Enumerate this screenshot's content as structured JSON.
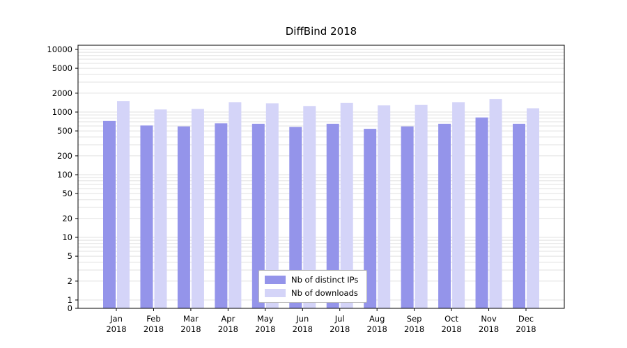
{
  "chart_data": {
    "type": "bar",
    "title": "DiffBind 2018",
    "categories": [
      "Jan",
      "Feb",
      "Mar",
      "Apr",
      "May",
      "Jun",
      "Jul",
      "Aug",
      "Sep",
      "Oct",
      "Nov",
      "Dec"
    ],
    "year_label": "2018",
    "series": [
      {
        "name": "Nb of distinct IPs",
        "color": "#9494ea",
        "values": [
          720,
          610,
          590,
          660,
          650,
          580,
          650,
          540,
          590,
          650,
          820,
          650
        ]
      },
      {
        "name": "Nb of downloads",
        "color": "#d4d4f8",
        "values": [
          1500,
          1100,
          1120,
          1430,
          1380,
          1250,
          1400,
          1280,
          1300,
          1430,
          1620,
          1150
        ]
      }
    ],
    "yscale": "log",
    "yticks": [
      0,
      1,
      2,
      5,
      10,
      20,
      50,
      100,
      200,
      500,
      1000,
      2000,
      5000,
      10000
    ],
    "ylim": [
      0,
      11650
    ],
    "xlabel": "",
    "ylabel": "",
    "grid": "horizontal-light",
    "legend_position": "bottom-center-inside",
    "grid_color": "#e0e0e0",
    "frame_color": "#000000"
  }
}
